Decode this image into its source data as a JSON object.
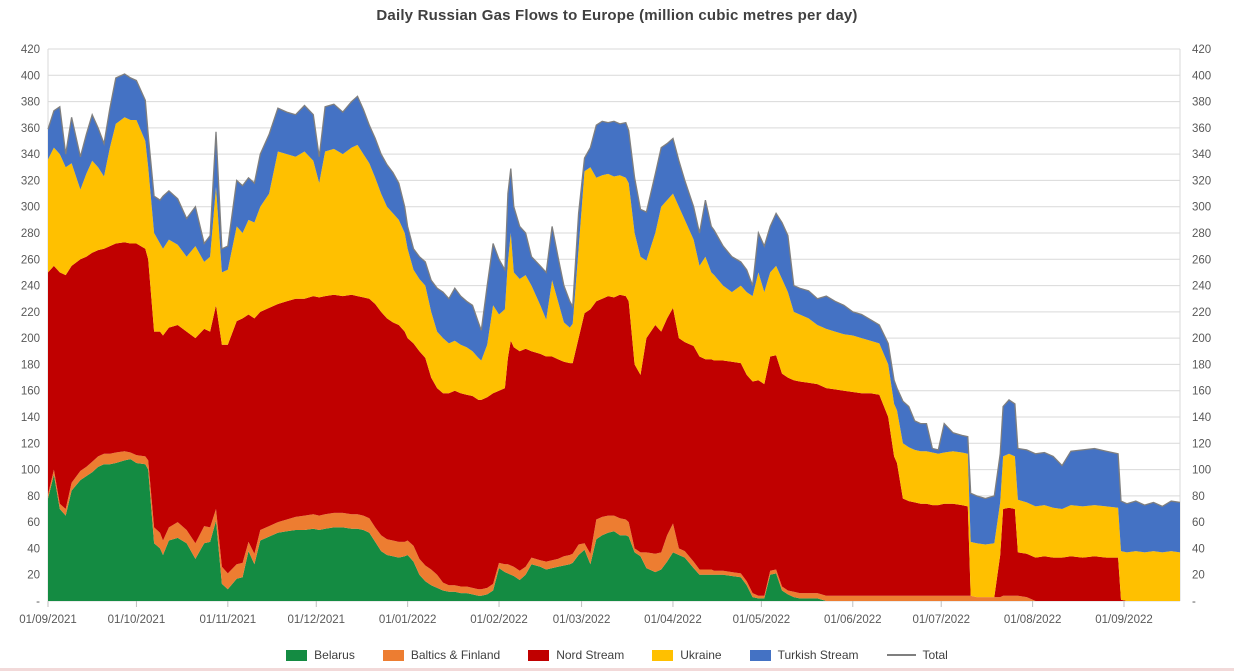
{
  "title": "Daily Russian Gas Flows to Europe (million cubic metres per day)",
  "colors": {
    "grid": "#D9D9D9",
    "axis_text": "#595959",
    "title_text": "#404040",
    "background": "#FFFFFF",
    "total_line": "#7F7F7F"
  },
  "chart_data": {
    "type": "area",
    "stacked": true,
    "title": "Daily Russian Gas Flows to Europe (million cubic metres per day)",
    "ylabel": "",
    "xlabel": "",
    "unit": "million cubic metres per day",
    "grid": true,
    "legend_position": "bottom",
    "y_axis": {
      "min": 0,
      "max": 420,
      "step": 20,
      "zero_label": "-",
      "tick_labels": [
        "-",
        "20",
        "40",
        "60",
        "80",
        "100",
        "120",
        "140",
        "160",
        "180",
        "200",
        "220",
        "240",
        "260",
        "280",
        "300",
        "320",
        "340",
        "360",
        "380",
        "400",
        "420"
      ],
      "shown_on_both_sides": true
    },
    "x_axis": {
      "start_date": "01/09/2021",
      "max_day": 384,
      "tick_days": [
        0,
        30,
        61,
        91,
        122,
        153,
        181,
        212,
        242,
        273,
        303,
        334,
        365
      ],
      "tick_labels": [
        "01/09/2021",
        "01/10/2021",
        "01/11/2021",
        "01/12/2021",
        "01/01/2022",
        "01/02/2022",
        "01/03/2022",
        "01/04/2022",
        "01/05/2022",
        "01/06/2022",
        "01/07/2022",
        "01/08/2022",
        "01/09/2022"
      ]
    },
    "series": [
      {
        "name": "Belarus",
        "color": "#148b42"
      },
      {
        "name": "Baltics & Finland",
        "color": "#ED7D31"
      },
      {
        "name": "Nord Stream",
        "color": "#C00000"
      },
      {
        "name": "Ukraine",
        "color": "#FFC000"
      },
      {
        "name": "Turkish Stream",
        "color": "#4472C4"
      }
    ],
    "total": {
      "name": "Total",
      "color": "#7F7F7F",
      "type": "line",
      "derived": "sum-of-stack"
    },
    "points_format": [
      "day_offset_from_2021-09-01",
      "Belarus",
      "Baltics & Finland",
      "Nord Stream",
      "Ukraine",
      "Turkish Stream"
    ],
    "points": [
      [
        0,
        78,
        3,
        169,
        86,
        23
      ],
      [
        2,
        96,
        4,
        155,
        90,
        28
      ],
      [
        4,
        70,
        4,
        176,
        90,
        36
      ],
      [
        6,
        65,
        5,
        178,
        82,
        10
      ],
      [
        8,
        84,
        6,
        165,
        78,
        35
      ],
      [
        11,
        92,
        7,
        161,
        53,
        25
      ],
      [
        13,
        95,
        7,
        160,
        63,
        30
      ],
      [
        15,
        98,
        8,
        159,
        70,
        35
      ],
      [
        17,
        102,
        8,
        157,
        63,
        30
      ],
      [
        19,
        104,
        8,
        156,
        55,
        25
      ],
      [
        21,
        104,
        8,
        158,
        75,
        30
      ],
      [
        23,
        105,
        8,
        159,
        91,
        35
      ],
      [
        26,
        107,
        7,
        159,
        95,
        33
      ],
      [
        28,
        108,
        5,
        159,
        94,
        32
      ],
      [
        30,
        105,
        6,
        161,
        94,
        30
      ],
      [
        33,
        104,
        6,
        158,
        82,
        31
      ],
      [
        34,
        100,
        7,
        153,
        70,
        25
      ],
      [
        36,
        44,
        12,
        149,
        75,
        28
      ],
      [
        38,
        40,
        12,
        153,
        67,
        33
      ],
      [
        39,
        35,
        11,
        156,
        66,
        40
      ],
      [
        41,
        46,
        10,
        152,
        67,
        37
      ],
      [
        44,
        48,
        12,
        150,
        61,
        35
      ],
      [
        47,
        44,
        10,
        151,
        57,
        29
      ],
      [
        50,
        32,
        12,
        156,
        70,
        30
      ],
      [
        53,
        44,
        13,
        150,
        51,
        14
      ],
      [
        55,
        45,
        11,
        149,
        57,
        16
      ],
      [
        57,
        61,
        9,
        155,
        90,
        42
      ],
      [
        59,
        13,
        13,
        169,
        55,
        18
      ],
      [
        61,
        9,
        12,
        174,
        57,
        18
      ],
      [
        64,
        17,
        11,
        185,
        72,
        35
      ],
      [
        66,
        18,
        11,
        186,
        65,
        36
      ],
      [
        68,
        38,
        7,
        173,
        72,
        32
      ],
      [
        70,
        28,
        8,
        179,
        73,
        30
      ],
      [
        72,
        46,
        8,
        166,
        80,
        40
      ],
      [
        75,
        49,
        8,
        166,
        87,
        45
      ],
      [
        78,
        52,
        8,
        166,
        116,
        33
      ],
      [
        81,
        53,
        9,
        166,
        112,
        32
      ],
      [
        84,
        54,
        10,
        166,
        108,
        32
      ],
      [
        87,
        54,
        11,
        165,
        112,
        35
      ],
      [
        90,
        55,
        11,
        166,
        103,
        35
      ],
      [
        92,
        54,
        11,
        166,
        87,
        20
      ],
      [
        94,
        55,
        11,
        166,
        110,
        34
      ],
      [
        97,
        56,
        11,
        166,
        111,
        34
      ],
      [
        100,
        56,
        11,
        165,
        108,
        32
      ],
      [
        103,
        55,
        11,
        167,
        112,
        35
      ],
      [
        105,
        55,
        11,
        166,
        115,
        37
      ],
      [
        107,
        54,
        11,
        166,
        109,
        34
      ],
      [
        109,
        52,
        11,
        167,
        103,
        29
      ],
      [
        111,
        45,
        11,
        170,
        96,
        30
      ],
      [
        113,
        38,
        12,
        170,
        90,
        30
      ],
      [
        115,
        35,
        12,
        168,
        85,
        32
      ],
      [
        117,
        34,
        12,
        166,
        83,
        31
      ],
      [
        119,
        33,
        12,
        165,
        80,
        28
      ],
      [
        121,
        34,
        11,
        160,
        75,
        20
      ],
      [
        122,
        35,
        11,
        154,
        68,
        17
      ],
      [
        124,
        30,
        12,
        154,
        56,
        16
      ],
      [
        126,
        20,
        12,
        158,
        55,
        17
      ],
      [
        128,
        15,
        12,
        158,
        55,
        18
      ],
      [
        130,
        12,
        12,
        146,
        50,
        24
      ],
      [
        132,
        10,
        10,
        142,
        43,
        33
      ],
      [
        134,
        8,
        6,
        144,
        42,
        35
      ],
      [
        136,
        7,
        5,
        146,
        38,
        34
      ],
      [
        138,
        7,
        5,
        148,
        38,
        40
      ],
      [
        140,
        6,
        5,
        147,
        37,
        37
      ],
      [
        142,
        6,
        5,
        146,
        36,
        35
      ],
      [
        144,
        5,
        5,
        146,
        34,
        35
      ],
      [
        146,
        4,
        5,
        144,
        32,
        27
      ],
      [
        147,
        4,
        5,
        144,
        30,
        23
      ],
      [
        149,
        5,
        5,
        145,
        40,
        45
      ],
      [
        151,
        8,
        5,
        145,
        67,
        47
      ],
      [
        153,
        25,
        4,
        131,
        58,
        42
      ],
      [
        155,
        22,
        6,
        134,
        60,
        30
      ],
      [
        156,
        21,
        7,
        157,
        73,
        52
      ],
      [
        157,
        20,
        7,
        171,
        82,
        49
      ],
      [
        158,
        19,
        7,
        167,
        57,
        50
      ],
      [
        160,
        16,
        7,
        167,
        55,
        40
      ],
      [
        162,
        20,
        6,
        166,
        56,
        32
      ],
      [
        164,
        28,
        5,
        157,
        50,
        22
      ],
      [
        167,
        26,
        5,
        157,
        37,
        30
      ],
      [
        169,
        24,
        6,
        156,
        28,
        36
      ],
      [
        171,
        25,
        6,
        155,
        58,
        41
      ],
      [
        173,
        26,
        6,
        152,
        44,
        34
      ],
      [
        175,
        27,
        7,
        148,
        30,
        28
      ],
      [
        177,
        28,
        7,
        146,
        27,
        20
      ],
      [
        178,
        29,
        7,
        145,
        30,
        13
      ],
      [
        180,
        35,
        8,
        157,
        68,
        27
      ],
      [
        182,
        39,
        5,
        175,
        108,
        10
      ],
      [
        184,
        28,
        8,
        186,
        108,
        15
      ],
      [
        186,
        47,
        15,
        166,
        94,
        40
      ],
      [
        188,
        50,
        14,
        166,
        94,
        41
      ],
      [
        190,
        52,
        13,
        167,
        93,
        39
      ],
      [
        192,
        53,
        12,
        166,
        92,
        42
      ],
      [
        194,
        50,
        13,
        170,
        91,
        39
      ],
      [
        196,
        50,
        12,
        170,
        90,
        42
      ],
      [
        197,
        49,
        11,
        168,
        90,
        40
      ],
      [
        199,
        37,
        3,
        140,
        100,
        42
      ],
      [
        201,
        34,
        3,
        135,
        90,
        36
      ],
      [
        203,
        25,
        12,
        163,
        59,
        37
      ],
      [
        206,
        22,
        14,
        174,
        70,
        45
      ],
      [
        208,
        24,
        13,
        168,
        95,
        45
      ],
      [
        210,
        30,
        20,
        165,
        90,
        43
      ],
      [
        212,
        37,
        22,
        164,
        87,
        42
      ],
      [
        214,
        35,
        5,
        160,
        100,
        35
      ],
      [
        216,
        33,
        5,
        159,
        93,
        30
      ],
      [
        219,
        25,
        5,
        164,
        81,
        25
      ],
      [
        221,
        20,
        4,
        162,
        69,
        25
      ],
      [
        223,
        20,
        4,
        160,
        78,
        43
      ],
      [
        225,
        20,
        4,
        160,
        66,
        35
      ],
      [
        226,
        20,
        3,
        160,
        65,
        34
      ],
      [
        229,
        20,
        3,
        160,
        57,
        30
      ],
      [
        232,
        19,
        3,
        160,
        53,
        27
      ],
      [
        235,
        18,
        3,
        160,
        59,
        18
      ],
      [
        237,
        12,
        3,
        157,
        63,
        17
      ],
      [
        239,
        3,
        3,
        161,
        65,
        8
      ],
      [
        241,
        2,
        2,
        164,
        82,
        30
      ],
      [
        243,
        2,
        2,
        161,
        70,
        35
      ],
      [
        245,
        20,
        3,
        163,
        64,
        35
      ],
      [
        247,
        21,
        3,
        163,
        68,
        40
      ],
      [
        249,
        8,
        3,
        162,
        72,
        43
      ],
      [
        251,
        5,
        3,
        162,
        65,
        43
      ],
      [
        253,
        3,
        4,
        161,
        52,
        20
      ],
      [
        255,
        2,
        4,
        161,
        51,
        20
      ],
      [
        258,
        2,
        4,
        160,
        49,
        21
      ],
      [
        261,
        2,
        4,
        159,
        45,
        20
      ],
      [
        264,
        0,
        4,
        158,
        45,
        25
      ],
      [
        267,
        0,
        4,
        157,
        44,
        23
      ],
      [
        270,
        0,
        4,
        156,
        43,
        22
      ],
      [
        273,
        0,
        4,
        155,
        43,
        18
      ],
      [
        276,
        0,
        4,
        154,
        42,
        18
      ],
      [
        279,
        0,
        4,
        154,
        40,
        16
      ],
      [
        282,
        0,
        4,
        153,
        39,
        14
      ],
      [
        285,
        0,
        4,
        136,
        40,
        16
      ],
      [
        287,
        0,
        4,
        106,
        40,
        18
      ],
      [
        288,
        0,
        4,
        101,
        40,
        17
      ],
      [
        290,
        0,
        4,
        74,
        42,
        32
      ],
      [
        292,
        0,
        4,
        72,
        41,
        31
      ],
      [
        294,
        0,
        4,
        71,
        40,
        22
      ],
      [
        296,
        0,
        4,
        70,
        40,
        21
      ],
      [
        298,
        0,
        4,
        70,
        40,
        21
      ],
      [
        300,
        0,
        4,
        69,
        40,
        3
      ],
      [
        302,
        0,
        4,
        69,
        39,
        3
      ],
      [
        304,
        0,
        4,
        70,
        39,
        22
      ],
      [
        307,
        0,
        4,
        70,
        40,
        14
      ],
      [
        310,
        0,
        4,
        69,
        40,
        13
      ],
      [
        312,
        0,
        4,
        68,
        40,
        13
      ],
      [
        313,
        0,
        4,
        0,
        41,
        37
      ],
      [
        315,
        0,
        3,
        0,
        41,
        36
      ],
      [
        318,
        0,
        3,
        0,
        40,
        35
      ],
      [
        321,
        0,
        3,
        0,
        41,
        36
      ],
      [
        323,
        0,
        3,
        32,
        40,
        37
      ],
      [
        324,
        0,
        4,
        66,
        40,
        38
      ],
      [
        326,
        0,
        4,
        67,
        41,
        41
      ],
      [
        328,
        0,
        4,
        66,
        40,
        40
      ],
      [
        329,
        0,
        4,
        33,
        40,
        39
      ],
      [
        332,
        0,
        3,
        33,
        39,
        40
      ],
      [
        335,
        0,
        0,
        33,
        39,
        40
      ],
      [
        338,
        0,
        0,
        34,
        39,
        40
      ],
      [
        341,
        0,
        0,
        33,
        38,
        39
      ],
      [
        344,
        0,
        0,
        33,
        37,
        33
      ],
      [
        347,
        0,
        0,
        34,
        39,
        41
      ],
      [
        351,
        0,
        0,
        33,
        39,
        43
      ],
      [
        355,
        0,
        0,
        34,
        39,
        43
      ],
      [
        359,
        0,
        0,
        33,
        39,
        42
      ],
      [
        363,
        0,
        0,
        33,
        38,
        41
      ],
      [
        364,
        0,
        0,
        1,
        37,
        38
      ],
      [
        366,
        0,
        0,
        0,
        37,
        37
      ],
      [
        369,
        0,
        0,
        0,
        38,
        38
      ],
      [
        372,
        0,
        0,
        0,
        37,
        36
      ],
      [
        375,
        0,
        0,
        0,
        38,
        37
      ],
      [
        378,
        0,
        0,
        0,
        37,
        35
      ],
      [
        381,
        0,
        0,
        0,
        38,
        38
      ],
      [
        384,
        0,
        0,
        0,
        37,
        38
      ]
    ]
  }
}
